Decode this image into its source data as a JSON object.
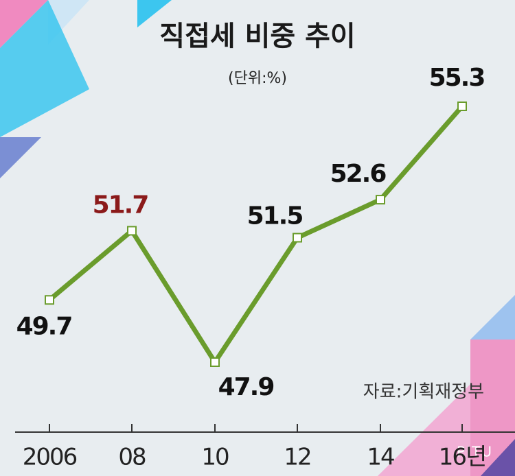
{
  "chart_data": {
    "type": "line",
    "title": "직접세 비중 추이",
    "subtitle": "(단위:%)",
    "source": "자료:기획재정부",
    "categories": [
      "2006",
      "08",
      "10",
      "12",
      "14",
      "16년"
    ],
    "values": [
      49.7,
      51.7,
      47.9,
      51.5,
      52.6,
      55.3
    ],
    "color": "#6a9c2c",
    "label_colors": [
      "#111111",
      "#8b1a1a",
      "#111111",
      "#111111",
      "#111111",
      "#111111"
    ]
  },
  "watermark": "PITU"
}
